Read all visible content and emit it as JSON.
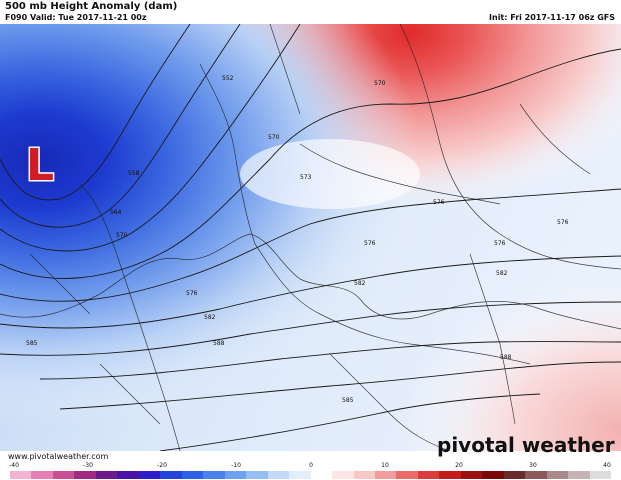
{
  "header": {
    "title": "500 mb Height Anomaly (dam)",
    "valid": "F090 Valid: Tue 2017-11-21 00z",
    "init": "Init: Fri 2017-11-17 06z GFS"
  },
  "map": {
    "low_label": "L",
    "contour_labels": [
      "552",
      "558",
      "564",
      "570",
      "570",
      "573",
      "570",
      "576",
      "576",
      "576",
      "576",
      "576",
      "582",
      "582",
      "582",
      "585",
      "588",
      "588",
      "585"
    ],
    "colors": {
      "strong_negative": "#1a35c8",
      "negative": "#5f8fe8",
      "weak_negative": "#c9ddf7",
      "neutral": "#ffffff",
      "weak_positive": "#f7d0d0",
      "positive": "#ef7676",
      "strong_positive": "#e02a2a",
      "low_marker": "#d01c24"
    }
  },
  "footer": {
    "url": "www.pivotalweather.com",
    "brand": "pivotal weather"
  },
  "colorbar": {
    "ticks": [
      "-40",
      "-30",
      "-20",
      "-10",
      "0",
      "10",
      "20",
      "30",
      "40"
    ],
    "colors": [
      "#f2b3d3",
      "#e57fb5",
      "#c94f94",
      "#9e2b80",
      "#6e1a8a",
      "#4b12a6",
      "#2f1ec9",
      "#2443da",
      "#2d62e6",
      "#4a82ec",
      "#6da0f0",
      "#96bdf4",
      "#c2daf8",
      "#e4eefb",
      "#ffffff",
      "#fde6e6",
      "#f8c7c7",
      "#f19d9d",
      "#e86e6e",
      "#dc3c3c",
      "#c41c1c",
      "#9c0f0f",
      "#7a0a0a",
      "#6a2b2b",
      "#8a5a5a",
      "#a88a8a",
      "#c4b4b4",
      "#dedede"
    ]
  }
}
